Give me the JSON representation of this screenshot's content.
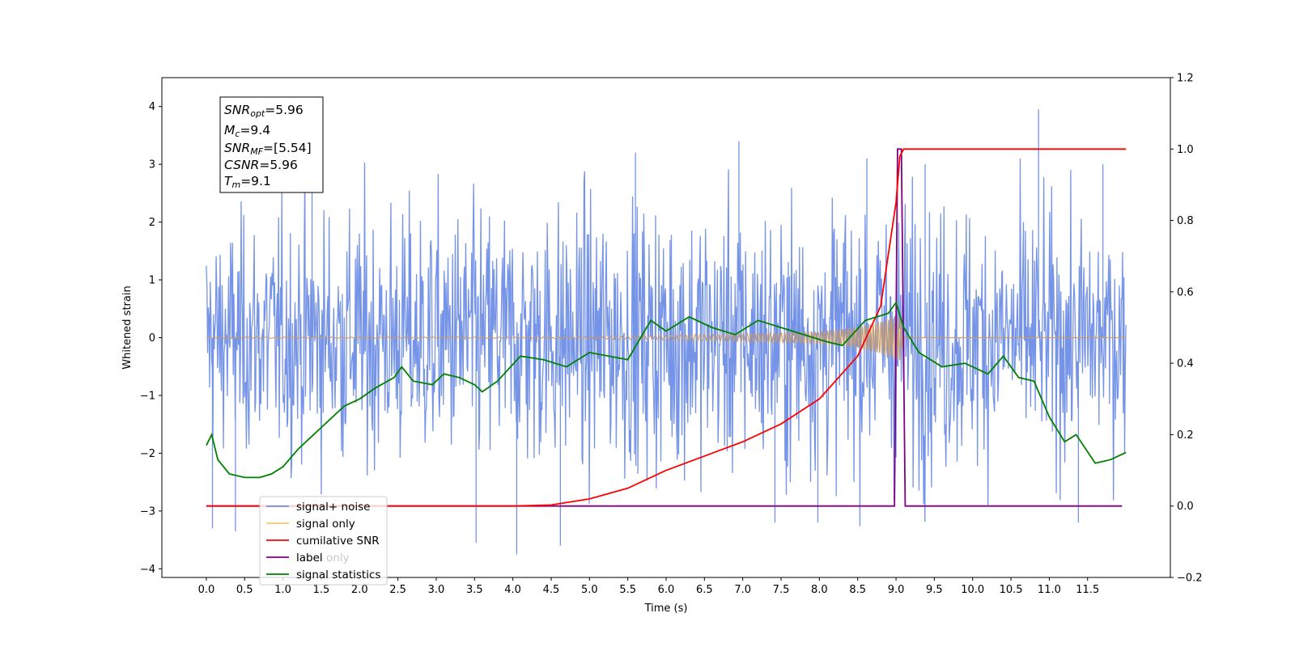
{
  "chart_data": {
    "type": "line",
    "title": "",
    "xlabel": "Time (s)",
    "ylabel": "Whitened strain",
    "ylabel_right": "",
    "xlim": [
      -0.58,
      12.58
    ],
    "ylim": [
      -4.15,
      4.5
    ],
    "ylim_right": [
      -0.2,
      1.2
    ],
    "x_ticks": [
      "0.0",
      "0.5",
      "1.0",
      "1.5",
      "2.0",
      "2.5",
      "3.0",
      "3.5",
      "4.0",
      "4.5",
      "5.0",
      "5.5",
      "6.0",
      "6.5",
      "7.0",
      "7.5",
      "8.0",
      "8.5",
      "9.0",
      "9.5",
      "10.0",
      "10.5",
      "11.0",
      "11.5"
    ],
    "y_ticks": [
      "4",
      "3",
      "2",
      "1",
      "0",
      "−1",
      "−2",
      "−3",
      "−4"
    ],
    "y_ticks_right": [
      "1.2",
      "1.0",
      "0.8",
      "0.6",
      "0.4",
      "0.2",
      "0.0",
      "−0.2"
    ],
    "grid": false,
    "legend_position": "lower-left",
    "annotation": {
      "snr_opt": {
        "base": "SNR",
        "sub": "opt",
        "value": "=5.96"
      },
      "mc": {
        "base": "M",
        "sub": "c",
        "value": "=9.4"
      },
      "snr_mf": {
        "base": "SNR",
        "sub": "MF",
        "value": "=[5.54]"
      },
      "csnr": {
        "base": "CSNR",
        "value": "=5.96"
      },
      "tm": {
        "base": "T",
        "sub": "m",
        "value": "=9.1"
      }
    },
    "series": [
      {
        "name": "signal+ noise",
        "axis": "left",
        "color": "#6f8ee6",
        "kind": "noise-band",
        "x_range": [
          0.0,
          12.0
        ],
        "typical_amplitude": 1.6,
        "envelope_points": [
          [
            0.0,
            1.7
          ],
          [
            2.0,
            2.0
          ],
          [
            4.0,
            2.0
          ],
          [
            6.0,
            2.1
          ],
          [
            8.0,
            2.0
          ],
          [
            9.0,
            2.2
          ],
          [
            10.0,
            2.0
          ],
          [
            12.0,
            1.8
          ]
        ],
        "peak_excursions": [
          [
            0.08,
            -3.3
          ],
          [
            0.38,
            -3.35
          ],
          [
            1.38,
            3.1
          ],
          [
            3.52,
            -3.55
          ],
          [
            4.05,
            -3.75
          ],
          [
            4.62,
            -3.6
          ],
          [
            5.6,
            3.2
          ],
          [
            6.95,
            3.4
          ],
          [
            7.42,
            -3.2
          ],
          [
            7.98,
            -3.2
          ],
          [
            8.62,
            3.1
          ],
          [
            9.38,
            3.0
          ],
          [
            10.62,
            3.1
          ],
          [
            10.86,
            3.95
          ],
          [
            11.38,
            -3.2
          ],
          [
            11.7,
            3.0
          ]
        ]
      },
      {
        "name": "signal only",
        "axis": "left",
        "color": "#f9c76e",
        "kind": "chirp",
        "x_range": [
          0.0,
          12.0
        ],
        "envelope": [
          [
            0.0,
            0.01
          ],
          [
            4.0,
            0.01
          ],
          [
            5.0,
            0.02
          ],
          [
            6.0,
            0.04
          ],
          [
            7.0,
            0.07
          ],
          [
            8.0,
            0.1
          ],
          [
            8.5,
            0.18
          ],
          [
            8.8,
            0.28
          ],
          [
            9.0,
            0.38
          ],
          [
            9.05,
            0.42
          ],
          [
            9.1,
            0.0
          ],
          [
            12.0,
            0.0
          ]
        ]
      },
      {
        "name": "cumilative SNR",
        "axis": "right",
        "color": "#ff0000",
        "x": [
          0.0,
          4.0,
          4.5,
          5.0,
          5.5,
          6.0,
          6.5,
          7.0,
          7.5,
          8.0,
          8.5,
          8.8,
          9.0,
          9.05,
          9.1,
          12.0
        ],
        "values": [
          0.0,
          0.0,
          0.003,
          0.02,
          0.05,
          0.1,
          0.14,
          0.18,
          0.23,
          0.3,
          0.42,
          0.56,
          0.85,
          0.98,
          1.0,
          1.0
        ]
      },
      {
        "name": "label only",
        "axis": "right",
        "color": "#ffffff",
        "x": [],
        "values": []
      },
      {
        "name": "label",
        "axis": "right",
        "color": "#800080",
        "x": [
          0.0,
          8.98,
          9.02,
          9.07,
          9.12,
          11.95
        ],
        "values": [
          0.0,
          0.0,
          1.0,
          1.0,
          0.0,
          0.0
        ]
      },
      {
        "name": "signal statistics",
        "axis": "right",
        "color": "#008000",
        "x": [
          0.0,
          0.07,
          0.15,
          0.3,
          0.5,
          0.7,
          0.85,
          1.0,
          1.2,
          1.5,
          1.8,
          2.0,
          2.2,
          2.45,
          2.55,
          2.7,
          2.95,
          3.1,
          3.3,
          3.5,
          3.6,
          3.8,
          4.1,
          4.4,
          4.7,
          5.0,
          5.5,
          5.8,
          6.0,
          6.3,
          6.6,
          6.9,
          7.2,
          7.5,
          7.8,
          8.1,
          8.3,
          8.6,
          8.9,
          9.0,
          9.1,
          9.3,
          9.6,
          9.9,
          10.2,
          10.4,
          10.6,
          10.8,
          11.0,
          11.2,
          11.35,
          11.6,
          11.8,
          12.0
        ],
        "values": [
          0.17,
          0.2,
          0.13,
          0.09,
          0.08,
          0.08,
          0.09,
          0.11,
          0.16,
          0.22,
          0.28,
          0.3,
          0.33,
          0.36,
          0.39,
          0.35,
          0.34,
          0.37,
          0.36,
          0.34,
          0.32,
          0.35,
          0.42,
          0.41,
          0.39,
          0.43,
          0.41,
          0.52,
          0.49,
          0.53,
          0.5,
          0.48,
          0.52,
          0.5,
          0.48,
          0.46,
          0.45,
          0.52,
          0.54,
          0.57,
          0.5,
          0.43,
          0.39,
          0.4,
          0.37,
          0.42,
          0.36,
          0.35,
          0.25,
          0.18,
          0.2,
          0.12,
          0.13,
          0.15
        ]
      }
    ]
  }
}
